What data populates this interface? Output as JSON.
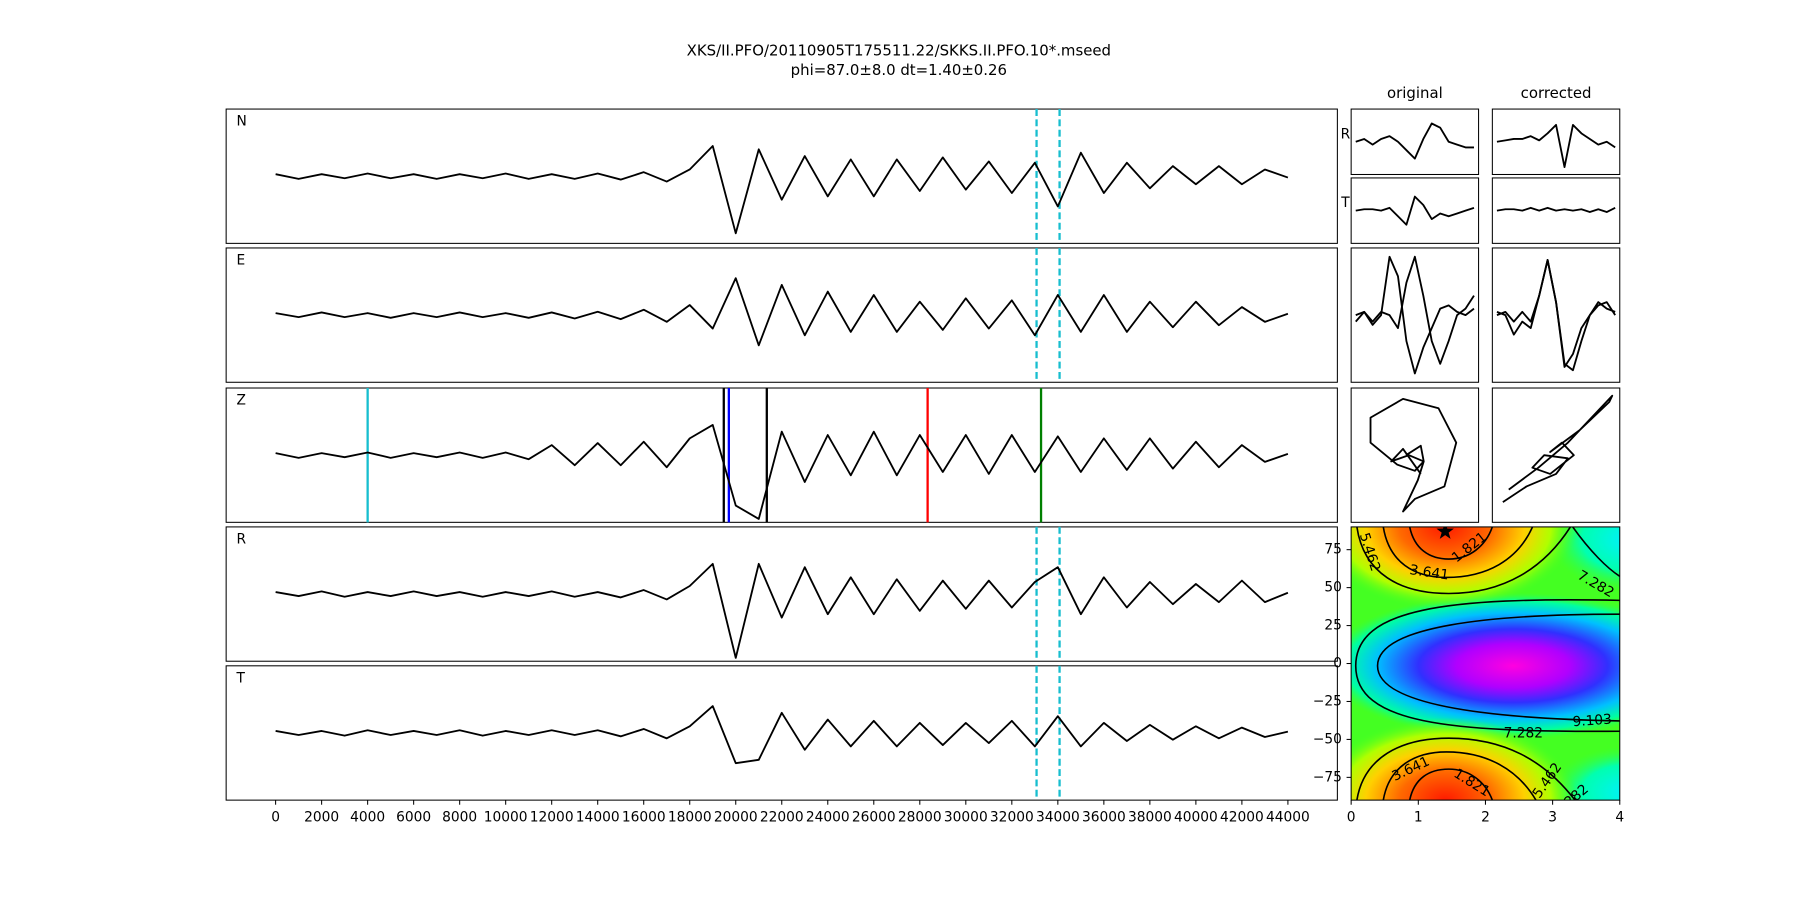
{
  "chart_data": [
    {
      "type": "line",
      "title": "XKS/II.PFO/20110905T175511.22/SKKS.II.PFO.10*.mseed",
      "subtitle": "phi=87.0±8.0 dt=1.40±0.26",
      "x": [
        0,
        1000,
        2000,
        3000,
        4000,
        5000,
        6000,
        7000,
        8000,
        9000,
        10000,
        11000,
        12000,
        13000,
        14000,
        15000,
        16000,
        17000,
        18000,
        19000,
        20000,
        21000,
        22000,
        23000,
        24000,
        25000,
        26000,
        27000,
        28000,
        29000,
        30000,
        31000,
        32000,
        33000,
        34000,
        35000,
        36000,
        37000,
        38000,
        39000,
        40000,
        41000,
        42000,
        43000,
        44000
      ],
      "xlim": [
        -2150,
        46150
      ],
      "xticks": [
        0,
        2000,
        4000,
        6000,
        8000,
        10000,
        12000,
        14000,
        16000,
        18000,
        20000,
        22000,
        24000,
        26000,
        28000,
        30000,
        32000,
        34000,
        36000,
        38000,
        40000,
        42000,
        44000
      ],
      "ylim": [
        -1,
        1
      ],
      "series": [
        {
          "name": "N",
          "color": "#000000",
          "values": [
            0.03,
            -0.04,
            0.03,
            -0.03,
            0.04,
            -0.03,
            0.03,
            -0.04,
            0.03,
            -0.03,
            0.04,
            -0.04,
            0.03,
            -0.04,
            0.04,
            -0.05,
            0.06,
            -0.08,
            0.1,
            0.45,
            -0.85,
            0.4,
            -0.35,
            0.3,
            -0.3,
            0.25,
            -0.3,
            0.25,
            -0.22,
            0.28,
            -0.2,
            0.22,
            -0.25,
            0.2,
            -0.45,
            0.35,
            -0.25,
            0.2,
            -0.18,
            0.15,
            -0.12,
            0.15,
            -0.12,
            0.1,
            -0.02
          ],
          "markers": [
            {
              "x": 33075,
              "color": "#17becf",
              "style": "dashed"
            },
            {
              "x": 34075,
              "color": "#17becf",
              "style": "dashed"
            }
          ]
        },
        {
          "name": "E",
          "color": "#000000",
          "values": [
            0.03,
            -0.03,
            0.04,
            -0.03,
            0.03,
            -0.04,
            0.03,
            -0.03,
            0.04,
            -0.03,
            0.03,
            -0.04,
            0.04,
            -0.05,
            0.05,
            -0.06,
            0.08,
            -0.1,
            0.15,
            -0.2,
            0.55,
            -0.45,
            0.45,
            -0.3,
            0.35,
            -0.25,
            0.3,
            -0.25,
            0.2,
            -0.22,
            0.25,
            -0.2,
            0.22,
            -0.3,
            0.3,
            -0.25,
            0.3,
            -0.25,
            0.2,
            -0.18,
            0.2,
            -0.15,
            0.12,
            -0.1,
            0.02
          ],
          "markers": [
            {
              "x": 33075,
              "color": "#17becf",
              "style": "dashed"
            },
            {
              "x": 34075,
              "color": "#17becf",
              "style": "dashed"
            }
          ]
        },
        {
          "name": "Z",
          "color": "#000000",
          "values": [
            0.03,
            -0.04,
            0.03,
            -0.03,
            0.04,
            -0.04,
            0.03,
            -0.03,
            0.04,
            -0.04,
            0.04,
            -0.06,
            0.15,
            -0.15,
            0.18,
            -0.15,
            0.2,
            -0.18,
            0.25,
            0.45,
            -0.75,
            -0.95,
            0.35,
            -0.4,
            0.3,
            -0.3,
            0.35,
            -0.3,
            0.3,
            -0.25,
            0.3,
            -0.28,
            0.3,
            -0.25,
            0.28,
            -0.25,
            0.25,
            -0.22,
            0.25,
            -0.2,
            0.2,
            -0.18,
            0.15,
            -0.1,
            0.02
          ],
          "markers": [
            {
              "x": 4000,
              "color": "#17becf",
              "style": "solid"
            },
            {
              "x": 19480,
              "color": "#000000",
              "style": "solid"
            },
            {
              "x": 19700,
              "color": "#0000ff",
              "style": "solid"
            },
            {
              "x": 21350,
              "color": "#000000",
              "style": "solid"
            },
            {
              "x": 28340,
              "color": "#ff0000",
              "style": "solid"
            },
            {
              "x": 33270,
              "color": "#008000",
              "style": "solid"
            }
          ]
        },
        {
          "name": "R",
          "color": "#000000",
          "values": [
            0.03,
            -0.03,
            0.04,
            -0.04,
            0.03,
            -0.03,
            0.04,
            -0.03,
            0.03,
            -0.04,
            0.03,
            -0.03,
            0.04,
            -0.04,
            0.03,
            -0.05,
            0.06,
            -0.08,
            0.12,
            0.45,
            -0.95,
            0.45,
            -0.35,
            0.4,
            -0.3,
            0.25,
            -0.3,
            0.22,
            -0.25,
            0.2,
            -0.22,
            0.2,
            -0.2,
            0.18,
            0.4,
            -0.3,
            0.25,
            -0.2,
            0.18,
            -0.15,
            0.15,
            -0.12,
            0.2,
            -0.12,
            0.02
          ],
          "markers": [
            {
              "x": 33075,
              "color": "#17becf",
              "style": "dashed"
            },
            {
              "x": 34075,
              "color": "#17becf",
              "style": "dashed"
            }
          ]
        },
        {
          "name": "T",
          "color": "#000000",
          "values": [
            0.03,
            -0.03,
            0.03,
            -0.04,
            0.04,
            -0.03,
            0.03,
            -0.03,
            0.04,
            -0.04,
            0.03,
            -0.03,
            0.04,
            -0.03,
            0.04,
            -0.05,
            0.06,
            -0.08,
            0.1,
            0.4,
            -0.45,
            -0.4,
            0.3,
            -0.25,
            0.2,
            -0.2,
            0.18,
            -0.2,
            0.15,
            -0.18,
            0.15,
            -0.15,
            0.18,
            -0.2,
            0.25,
            -0.2,
            0.15,
            -0.12,
            0.12,
            -0.1,
            0.1,
            -0.08,
            0.08,
            -0.06,
            0.02
          ],
          "markers": [
            {
              "x": 33075,
              "color": "#17becf",
              "style": "dashed"
            },
            {
              "x": 34075,
              "color": "#17becf",
              "style": "dashed"
            }
          ]
        }
      ]
    },
    {
      "type": "line",
      "columns": [
        "original",
        "corrected"
      ],
      "ylim": [
        -1,
        1
      ],
      "rows": [
        {
          "name": "R",
          "original": [
            0,
            0.1,
            -0.1,
            0.1,
            0.2,
            0.0,
            -0.3,
            -0.6,
            0.1,
            0.65,
            0.5,
            0.0,
            -0.1,
            -0.2,
            -0.2
          ],
          "corrected": [
            0,
            0.05,
            0.1,
            0.1,
            0.2,
            0.05,
            0.3,
            0.6,
            -0.9,
            0.6,
            0.3,
            0.1,
            -0.1,
            0.0,
            -0.2
          ]
        },
        {
          "name": "T",
          "original": [
            0,
            0.05,
            0.05,
            0.0,
            0.1,
            -0.2,
            -0.5,
            0.5,
            0.2,
            -0.3,
            -0.1,
            -0.2,
            -0.1,
            0.0,
            0.1
          ],
          "corrected": [
            0,
            0.05,
            0.05,
            0,
            0.1,
            0,
            0.1,
            0,
            0.05,
            0,
            0.05,
            -0.05,
            0.05,
            -0.05,
            0.1
          ]
        }
      ],
      "overlay": {
        "original": [
          {
            "color": "#ff0000",
            "values": [
              0.0,
              0.05,
              -0.15,
              0.0,
              0.9,
              0.6,
              -0.4,
              -0.9,
              -0.5,
              -0.2,
              0.1,
              0.15,
              0.05,
              0.0,
              0.1
            ]
          },
          {
            "color": "#000000",
            "values": [
              -0.1,
              0.05,
              -0.1,
              0.05,
              0.0,
              -0.2,
              0.5,
              0.9,
              0.3,
              -0.4,
              -0.75,
              -0.4,
              0.0,
              0.1,
              0.3
            ]
          }
        ],
        "corrected": [
          {
            "color": "#ff0000",
            "values": [
              0.05,
              0.0,
              -0.3,
              -0.1,
              -0.2,
              0.3,
              0.85,
              0.2,
              -0.75,
              -0.85,
              -0.4,
              0.0,
              0.15,
              0.2,
              0.0
            ]
          },
          {
            "color": "#000000",
            "values": [
              0,
              0.05,
              -0.1,
              0.05,
              -0.1,
              0.3,
              0.85,
              0.2,
              -0.8,
              -0.6,
              -0.2,
              0.0,
              0.2,
              0.1,
              0.05
            ]
          }
        ]
      },
      "particle_motion": {
        "xlim": [
          -1,
          1
        ],
        "ylim": [
          -1,
          1
        ],
        "original": {
          "x": [
            -0.15,
            0.1,
            0.15,
            0.0,
            -0.3,
            -0.75,
            -0.75,
            -0.2,
            0.4,
            0.7,
            0.5,
            0.0,
            -0.2,
            0.05,
            0.15,
            -0.1,
            -0.4,
            -0.2,
            0.1
          ],
          "y": [
            0.0,
            0.15,
            -0.1,
            -0.25,
            -0.15,
            0.2,
            0.6,
            0.9,
            0.75,
            0.2,
            -0.5,
            -0.7,
            -0.9,
            -0.4,
            -0.1,
            0.0,
            -0.1,
            0.1,
            -0.3
          ]
        },
        "corrected": {
          "x": [
            -0.9,
            -0.5,
            0.0,
            0.2,
            -0.2,
            -0.4,
            -0.1,
            0.3,
            0.1,
            -0.1,
            0.4,
            0.9,
            0.95,
            0.6,
            0.2,
            -0.3,
            -0.8
          ],
          "y": [
            -0.75,
            -0.5,
            -0.3,
            -0.05,
            0.0,
            -0.2,
            -0.3,
            0.0,
            0.2,
            0.05,
            0.4,
            0.85,
            0.95,
            0.6,
            0.2,
            -0.2,
            -0.55
          ]
        }
      }
    },
    {
      "type": "contour",
      "xlim": [
        0,
        4
      ],
      "ylim": [
        -90,
        90
      ],
      "xticks": [
        0,
        1,
        2,
        3,
        4
      ],
      "yticks": [
        {
          "value": -75,
          "label": "−75"
        },
        {
          "value": -50,
          "label": "−50"
        },
        {
          "value": -25,
          "label": "−25"
        },
        0,
        25,
        50,
        75
      ],
      "levels": [
        1.821,
        3.641,
        5.462,
        7.282,
        9.103
      ],
      "best": {
        "x": 1.4,
        "y": 87
      }
    }
  ]
}
